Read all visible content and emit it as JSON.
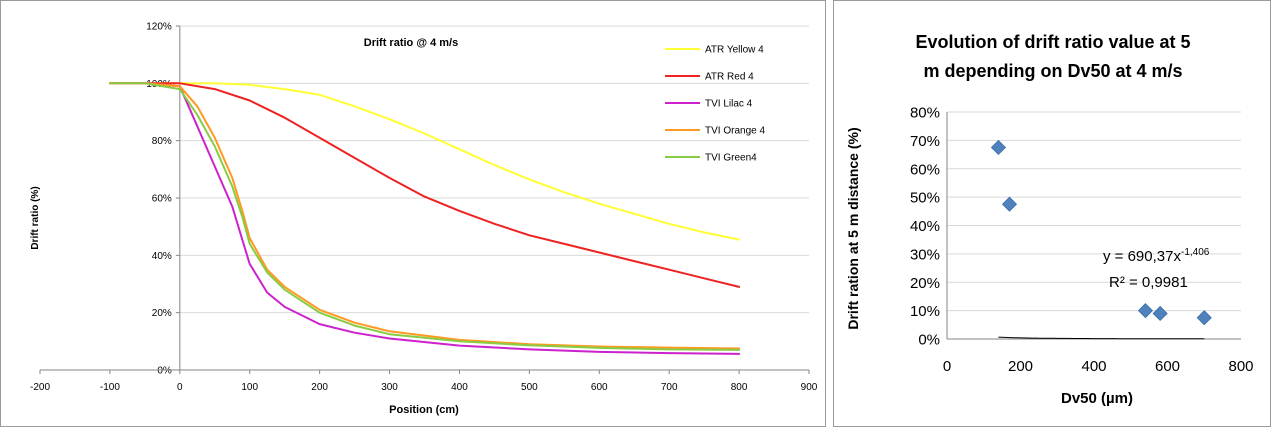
{
  "chart_data": [
    {
      "type": "line",
      "title": "Drift ratio @ 4 m/s",
      "xlabel": "Position (cm)",
      "ylabel": "Drift ratio (%)",
      "xlim": [
        -200,
        900
      ],
      "ylim": [
        0,
        120
      ],
      "x_ticks": [
        "-200",
        "-100",
        "0",
        "100",
        "200",
        "300",
        "400",
        "500",
        "600",
        "700",
        "800",
        "900"
      ],
      "y_ticks": [
        "0%",
        "20%",
        "40%",
        "60%",
        "80%",
        "100%",
        "120%"
      ],
      "grid": "horizontal",
      "legend_position": "top-right",
      "series": [
        {
          "name": "ATR Yellow 4",
          "color": "#ffff33",
          "x": [
            -100,
            -50,
            0,
            50,
            100,
            150,
            200,
            250,
            300,
            350,
            400,
            450,
            500,
            550,
            600,
            650,
            700,
            750,
            800
          ],
          "y": [
            100,
            100,
            100,
            100,
            99.5,
            98,
            96,
            92,
            87.5,
            82.5,
            77,
            71.5,
            66.5,
            62,
            58,
            54.5,
            51,
            48,
            45.5
          ]
        },
        {
          "name": "ATR Red 4",
          "color": "#ee2222",
          "x": [
            -100,
            -50,
            0,
            50,
            100,
            150,
            200,
            250,
            300,
            350,
            400,
            450,
            500,
            550,
            600,
            650,
            700,
            750,
            800
          ],
          "y": [
            100,
            100,
            100,
            98,
            94,
            88,
            81,
            74,
            67,
            60.5,
            55.5,
            51,
            47,
            44,
            41,
            38,
            35,
            32,
            29
          ]
        },
        {
          "name": "TVI Lilac 4",
          "color": "#cc22cc",
          "x": [
            -100,
            -50,
            0,
            25,
            50,
            75,
            90,
            100,
            125,
            150,
            200,
            250,
            300,
            400,
            500,
            600,
            700,
            800
          ],
          "y": [
            100,
            100,
            99,
            85,
            71,
            57,
            45,
            37,
            27,
            22,
            16,
            13,
            11,
            8.5,
            7.2,
            6.3,
            5.9,
            5.6
          ]
        },
        {
          "name": "TVI Orange 4",
          "color": "#ff9922",
          "x": [
            -100,
            -50,
            0,
            25,
            50,
            75,
            90,
            100,
            125,
            150,
            200,
            250,
            300,
            400,
            500,
            600,
            700,
            800
          ],
          "y": [
            100,
            100,
            99,
            92,
            81,
            67,
            55,
            46,
            35,
            29,
            21,
            16.5,
            13.5,
            10.5,
            9,
            8.2,
            7.8,
            7.5
          ]
        },
        {
          "name": "TVI Green4",
          "color": "#88cc44",
          "x": [
            -100,
            -50,
            0,
            25,
            50,
            75,
            90,
            100,
            125,
            150,
            200,
            250,
            300,
            400,
            500,
            600,
            700,
            800
          ],
          "y": [
            100,
            100,
            98,
            89,
            78,
            64,
            53,
            44,
            34,
            28,
            20,
            15.5,
            12.5,
            10,
            8.6,
            7.7,
            7.2,
            7
          ]
        }
      ]
    },
    {
      "type": "scatter",
      "title": "Evolution of drift ratio value at 5 m depending on Dv50 at 4 m/s",
      "title_lines": [
        "Evolution of drift ratio value at 5",
        "m depending on Dv50 at 4 m/s"
      ],
      "xlabel": "Dv50 (µm)",
      "ylabel": "Drift ration at 5 m distance (%)",
      "xlim": [
        0,
        800
      ],
      "ylim": [
        0,
        80
      ],
      "x_ticks": [
        "0",
        "200",
        "400",
        "600",
        "800"
      ],
      "y_ticks": [
        "0%",
        "10%",
        "20%",
        "30%",
        "40%",
        "50%",
        "60%",
        "70%",
        "80%"
      ],
      "grid": "horizontal",
      "series": [
        {
          "color": "#4f81bd",
          "x": [
            140,
            170,
            540,
            580,
            700
          ],
          "y": [
            67.5,
            47.5,
            10,
            9,
            7.5
          ]
        }
      ],
      "trendline": {
        "a": 690.37,
        "b": -1.406,
        "color": "#000000"
      },
      "annotation": {
        "equation_base": "y = 690,37x",
        "equation_exp": "-1,406",
        "r2": "R² = 0,9981"
      }
    }
  ]
}
